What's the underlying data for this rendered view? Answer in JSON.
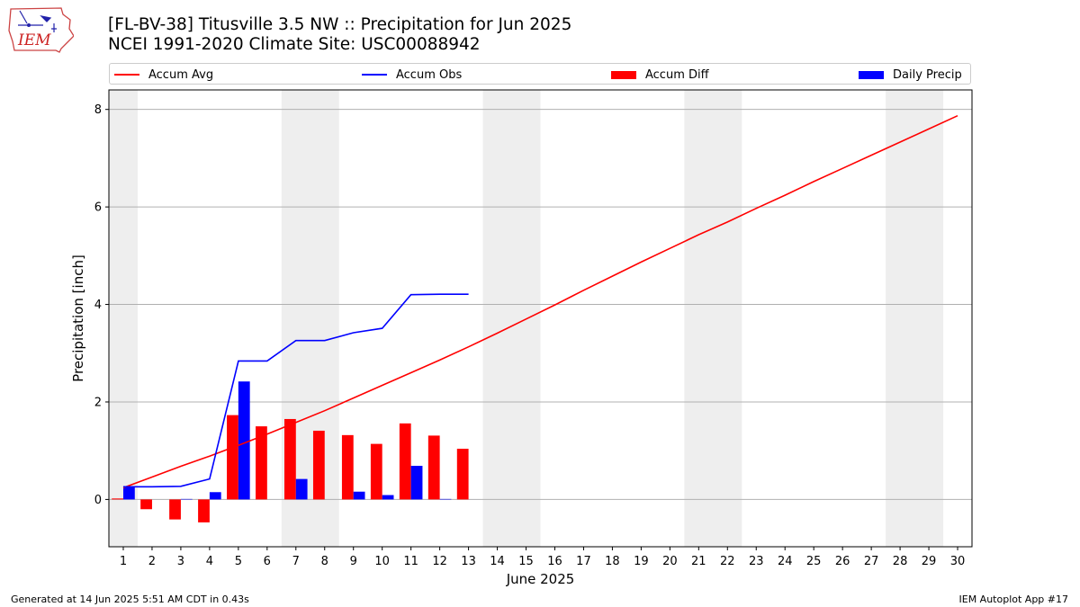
{
  "header": {
    "title_line1": "[FL-BV-38] Titusville 3.5 NW :: Precipitation for Jun 2025",
    "title_line2": "NCEI 1991-2020 Climate Site: USC00088942",
    "logo_text": "IEM"
  },
  "legend": {
    "position": "top",
    "items": [
      {
        "label": "Accum Avg",
        "color": "#ff0000",
        "kind": "line"
      },
      {
        "label": "Accum Obs",
        "color": "#0000ff",
        "kind": "line"
      },
      {
        "label": "Accum Diff",
        "color": "#ff0000",
        "kind": "bar"
      },
      {
        "label": "Daily Precip",
        "color": "#0000ff",
        "kind": "bar"
      }
    ]
  },
  "footer": {
    "left": "Generated at 14 Jun 2025 5:51 AM CDT in 0.43s",
    "right": "IEM Autoplot App #17"
  },
  "chart_data": {
    "type": "bar",
    "xlabel": "June 2025",
    "ylabel": "Precipitation [inch]",
    "xlim": [
      0.5,
      30.5
    ],
    "ylim": [
      -0.97,
      8.4
    ],
    "yticks": [
      0,
      2,
      4,
      6,
      8
    ],
    "x": [
      1,
      2,
      3,
      4,
      5,
      6,
      7,
      8,
      9,
      10,
      11,
      12,
      13,
      14,
      15,
      16,
      17,
      18,
      19,
      20,
      21,
      22,
      23,
      24,
      25,
      26,
      27,
      28,
      29,
      30
    ],
    "grid": "horizontal",
    "weekend_shading": [
      [
        0.5,
        1.5
      ],
      [
        6.5,
        8.5
      ],
      [
        13.5,
        15.5
      ],
      [
        20.5,
        22.5
      ],
      [
        27.5,
        29.5
      ]
    ],
    "shading_color": "#eeeeee",
    "series": [
      {
        "name": "Accum Avg",
        "type": "line",
        "color": "#ff0000",
        "x": [
          1,
          2,
          3,
          4,
          5,
          6,
          7,
          8,
          9,
          10,
          11,
          12,
          13,
          14,
          15,
          16,
          17,
          18,
          19,
          20,
          21,
          22,
          23,
          24,
          25,
          26,
          27,
          28,
          29,
          30
        ],
        "values": [
          0.24,
          0.46,
          0.68,
          0.89,
          1.11,
          1.34,
          1.58,
          1.82,
          2.08,
          2.34,
          2.6,
          2.86,
          3.13,
          3.41,
          3.7,
          3.99,
          4.29,
          4.58,
          4.87,
          5.15,
          5.43,
          5.69,
          5.97,
          6.24,
          6.52,
          6.79,
          7.06,
          7.33,
          7.6,
          7.87
        ]
      },
      {
        "name": "Accum Obs",
        "type": "line",
        "color": "#0000ff",
        "x": [
          1,
          2,
          3,
          4,
          5,
          6,
          7,
          8,
          9,
          10,
          11,
          12,
          13
        ],
        "values": [
          0.26,
          0.26,
          0.27,
          0.42,
          2.84,
          2.84,
          3.26,
          3.26,
          3.42,
          3.51,
          4.2,
          4.21,
          4.21
        ]
      },
      {
        "name": "Accum Diff",
        "type": "bar",
        "color": "#ff0000",
        "x": [
          1,
          2,
          3,
          4,
          5,
          6,
          7,
          8,
          9,
          10,
          11,
          12,
          13
        ],
        "values": [
          0.02,
          -0.2,
          -0.41,
          -0.47,
          1.73,
          1.5,
          1.65,
          1.41,
          1.32,
          1.14,
          1.56,
          1.31,
          1.04
        ]
      },
      {
        "name": "Daily Precip",
        "type": "bar",
        "color": "#0000ff",
        "x": [
          1,
          2,
          3,
          4,
          5,
          6,
          7,
          8,
          9,
          10,
          11,
          12,
          13
        ],
        "values": [
          0.26,
          0,
          0.01,
          0.15,
          2.42,
          0,
          0.42,
          0,
          0.16,
          0.09,
          0.69,
          0.01,
          0
        ]
      }
    ]
  }
}
